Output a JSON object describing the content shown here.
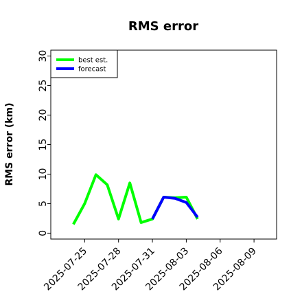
{
  "chart_data": {
    "type": "line",
    "title": "RMS error",
    "xlabel": "",
    "ylabel": "RMS error (km)",
    "ylim": [
      -1,
      31
    ],
    "xlim": [
      "2025-07-22",
      "2025-08-11"
    ],
    "yticks": [
      0,
      5,
      10,
      15,
      20,
      25,
      30
    ],
    "xticks": [
      {
        "value": "2025-07-25",
        "label": "2025-07-25",
        "color": "#000000"
      },
      {
        "value": "2025-07-28",
        "label": "2025-07-28",
        "color": "#000000"
      },
      {
        "value": "2025-07-31",
        "label": "2025-07-31",
        "color": "#008000"
      },
      {
        "value": "2025-08-03",
        "label": "2025-08-03",
        "color": "#000000"
      },
      {
        "value": "2025-08-06",
        "label": "2025-08-06",
        "color": "#000000"
      },
      {
        "value": "2025-08-09",
        "label": "2025-08-09",
        "color": "#000000"
      }
    ],
    "grid": false,
    "legend": "top-left",
    "series": [
      {
        "name": "best est.",
        "color": "#00ff00",
        "points": [
          {
            "x": "2025-07-24",
            "y": 1.5
          },
          {
            "x": "2025-07-25",
            "y": 5.0
          },
          {
            "x": "2025-07-26",
            "y": 9.9
          },
          {
            "x": "2025-07-27",
            "y": 8.2
          },
          {
            "x": "2025-07-28",
            "y": 2.4
          },
          {
            "x": "2025-07-29",
            "y": 8.5
          },
          {
            "x": "2025-07-30",
            "y": 1.8
          },
          {
            "x": "2025-07-31",
            "y": 2.4
          },
          {
            "x": "2025-08-01",
            "y": 6.1
          },
          {
            "x": "2025-08-02",
            "y": 6.0
          },
          {
            "x": "2025-08-03",
            "y": 6.1
          },
          {
            "x": "2025-08-04",
            "y": 2.4
          }
        ]
      },
      {
        "name": "forecast",
        "color": "#0000ff",
        "points": [
          {
            "x": "2025-07-31",
            "y": 2.4
          },
          {
            "x": "2025-08-01",
            "y": 6.1
          },
          {
            "x": "2025-08-02",
            "y": 5.9
          },
          {
            "x": "2025-08-03",
            "y": 5.2
          },
          {
            "x": "2025-08-04",
            "y": 2.7
          }
        ]
      }
    ]
  }
}
